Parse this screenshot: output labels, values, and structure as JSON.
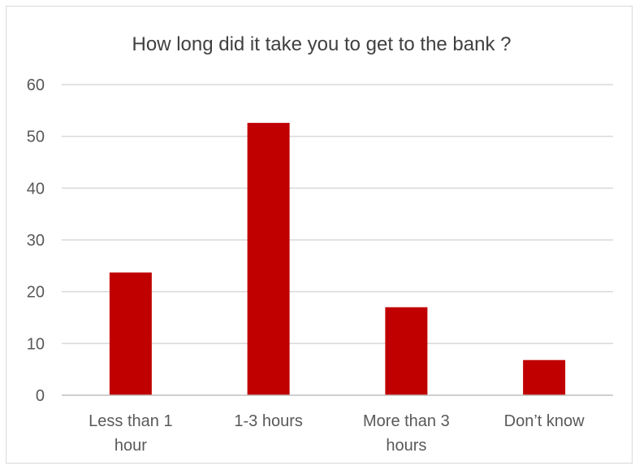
{
  "chart_data": {
    "type": "bar",
    "title": "How long did it take you to get to the bank ?",
    "xlabel": "",
    "ylabel": "",
    "categories": [
      [
        "Less than 1",
        "hour"
      ],
      [
        "1-3 hours"
      ],
      [
        "More than 3",
        "hours"
      ],
      [
        "Don’t know"
      ]
    ],
    "values": [
      23.7,
      52.6,
      17.0,
      6.8
    ],
    "ylim": [
      0,
      60
    ],
    "yticks": [
      0,
      10,
      20,
      30,
      40,
      50,
      60
    ],
    "grid": true,
    "legend": "none",
    "colors": {
      "bar": "#c00000",
      "grid": "#d9d9d9",
      "axis": "#bfbfbf"
    }
  }
}
